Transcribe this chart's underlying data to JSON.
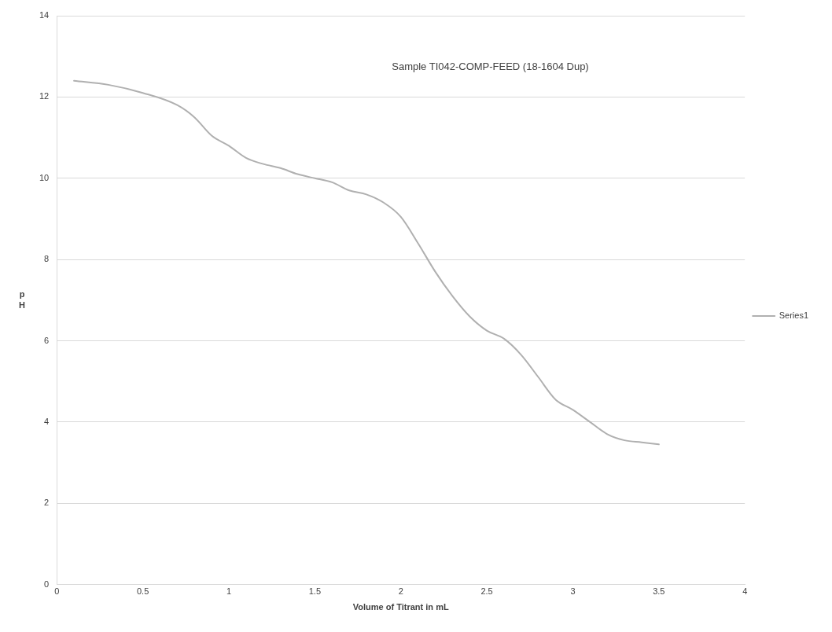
{
  "chart_data": {
    "type": "line",
    "title": "Sample TI042-COMP-FEED (18-1604 Dup)",
    "xlabel": "Volume of Titrant in mL",
    "ylabel": "pH",
    "x": [
      0.1,
      0.3,
      0.5,
      0.7,
      0.8,
      0.9,
      1.0,
      1.1,
      1.2,
      1.3,
      1.4,
      1.5,
      1.6,
      1.7,
      1.8,
      1.9,
      2.0,
      2.1,
      2.2,
      2.3,
      2.4,
      2.5,
      2.6,
      2.7,
      2.8,
      2.9,
      3.0,
      3.1,
      3.2,
      3.3,
      3.4,
      3.5
    ],
    "series": [
      {
        "name": "Series1",
        "color": "#b0b0b0",
        "values": [
          12.4,
          12.3,
          12.1,
          11.8,
          11.5,
          11.05,
          10.8,
          10.5,
          10.35,
          10.25,
          10.1,
          10.0,
          9.9,
          9.7,
          9.6,
          9.4,
          9.05,
          8.4,
          7.7,
          7.1,
          6.6,
          6.25,
          6.05,
          5.65,
          5.1,
          4.55,
          4.3,
          4.0,
          3.7,
          3.55,
          3.5,
          3.45
        ]
      }
    ],
    "xlim": [
      0,
      4
    ],
    "xticks": [
      0,
      0.5,
      1,
      1.5,
      2,
      2.5,
      3,
      3.5,
      4
    ],
    "ylim": [
      0,
      14
    ],
    "yticks": [
      0,
      2,
      4,
      6,
      8,
      10,
      12,
      14
    ],
    "grid": "y",
    "legend": "right",
    "marker": "none",
    "line_style": "solid"
  }
}
